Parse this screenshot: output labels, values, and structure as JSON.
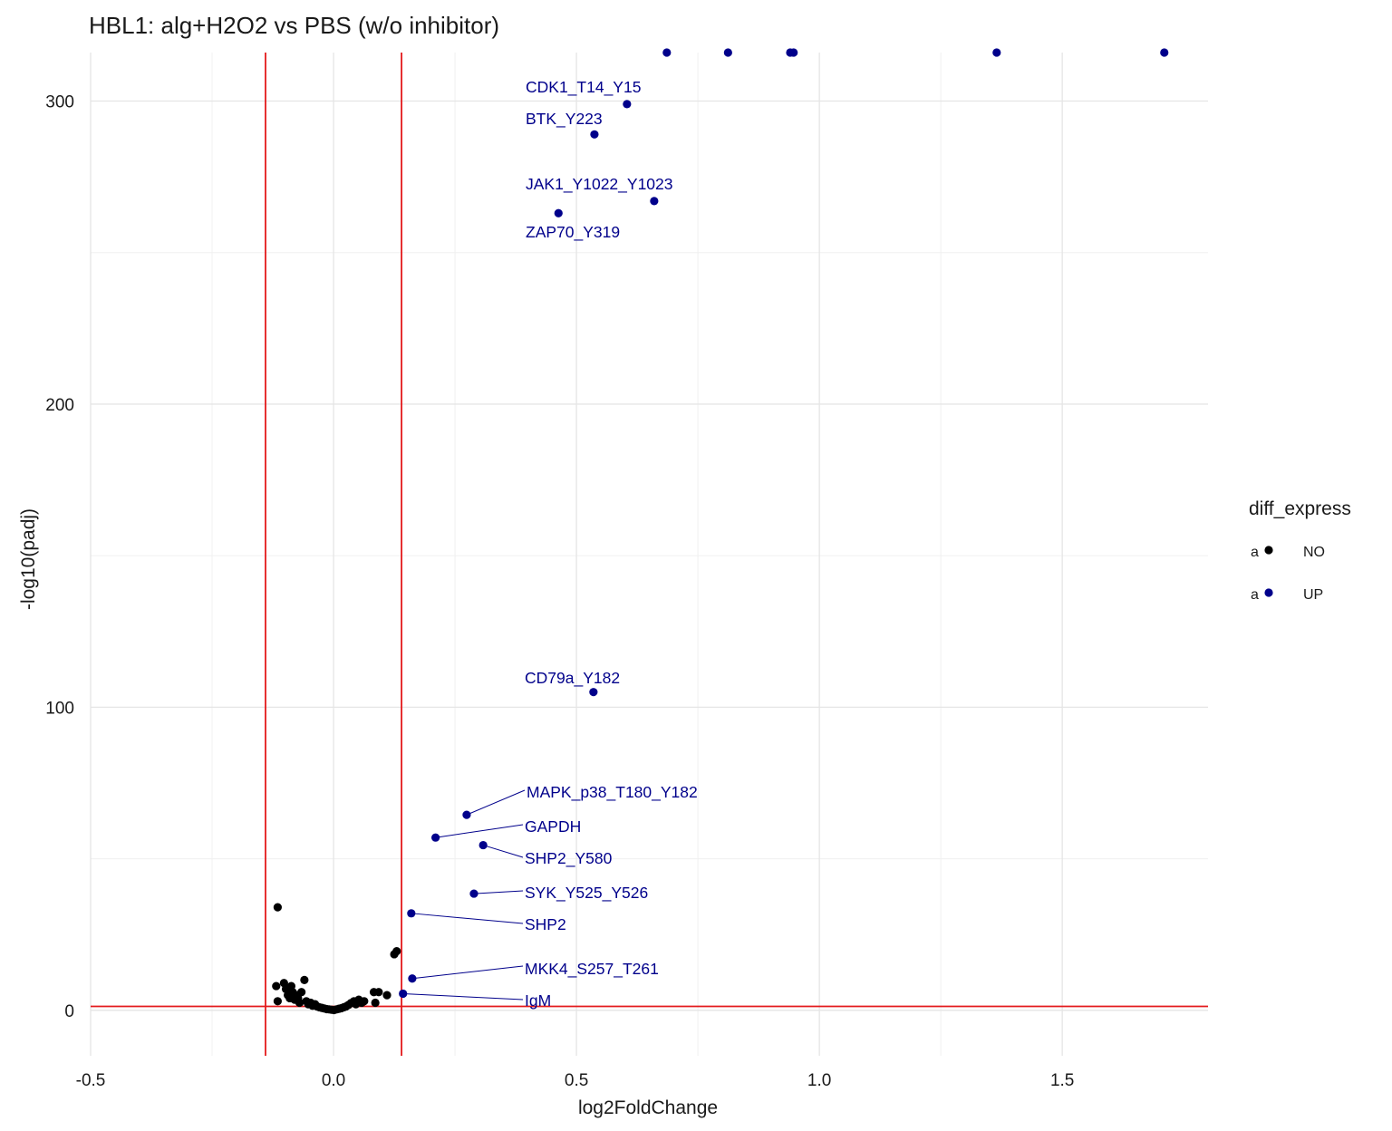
{
  "chart_data": {
    "type": "scatter",
    "title": "HBL1: alg+H2O2 vs PBS (w/o inhibitor)",
    "xlabel": "log2FoldChange",
    "ylabel": "-log10(padj)",
    "xlim": [
      -0.5,
      1.8
    ],
    "ylim": [
      -15,
      316
    ],
    "x_ticks": [
      -0.5,
      0.0,
      0.5,
      1.0,
      1.5
    ],
    "x_tick_labels": [
      "-0.5",
      "0.0",
      "0.5",
      "1.0",
      "1.5"
    ],
    "y_ticks": [
      0,
      100,
      200,
      300
    ],
    "y_tick_labels": [
      "0",
      "100",
      "200",
      "300"
    ],
    "grid": true,
    "reference_lines": {
      "vertical": [
        -0.14,
        0.14
      ],
      "horizontal": [
        1.3
      ]
    },
    "legend": {
      "title": "diff_express",
      "placement": "right",
      "entries": [
        {
          "key": "NO",
          "label": "NO",
          "glyph": "a",
          "color": "#000000"
        },
        {
          "key": "UP",
          "label": "UP",
          "glyph": "a",
          "color": "#00008B"
        }
      ]
    },
    "colors": {
      "NO": "#000000",
      "UP": "#00008B",
      "reference": "#E31A1C"
    },
    "points": [
      {
        "x": -0.115,
        "y": 34,
        "group": "NO"
      },
      {
        "x": -0.118,
        "y": 8,
        "group": "NO"
      },
      {
        "x": -0.115,
        "y": 3,
        "group": "NO"
      },
      {
        "x": -0.102,
        "y": 9,
        "group": "NO"
      },
      {
        "x": -0.098,
        "y": 7,
        "group": "NO"
      },
      {
        "x": -0.094,
        "y": 5,
        "group": "NO"
      },
      {
        "x": -0.09,
        "y": 4,
        "group": "NO"
      },
      {
        "x": -0.087,
        "y": 8,
        "group": "NO"
      },
      {
        "x": -0.084,
        "y": 6,
        "group": "NO"
      },
      {
        "x": -0.08,
        "y": 3.5,
        "group": "NO"
      },
      {
        "x": -0.077,
        "y": 5,
        "group": "NO"
      },
      {
        "x": -0.073,
        "y": 4,
        "group": "NO"
      },
      {
        "x": -0.07,
        "y": 2.5,
        "group": "NO"
      },
      {
        "x": -0.066,
        "y": 6,
        "group": "NO"
      },
      {
        "x": -0.06,
        "y": 10,
        "group": "NO"
      },
      {
        "x": -0.056,
        "y": 3,
        "group": "NO"
      },
      {
        "x": -0.052,
        "y": 2,
        "group": "NO"
      },
      {
        "x": -0.047,
        "y": 2.5,
        "group": "NO"
      },
      {
        "x": -0.043,
        "y": 1.5,
        "group": "NO"
      },
      {
        "x": -0.038,
        "y": 2,
        "group": "NO"
      },
      {
        "x": -0.033,
        "y": 1.2,
        "group": "NO"
      },
      {
        "x": -0.029,
        "y": 1.0,
        "group": "NO"
      },
      {
        "x": -0.024,
        "y": 0.8,
        "group": "NO"
      },
      {
        "x": -0.019,
        "y": 0.6,
        "group": "NO"
      },
      {
        "x": -0.014,
        "y": 0.4,
        "group": "NO"
      },
      {
        "x": -0.009,
        "y": 0.3,
        "group": "NO"
      },
      {
        "x": -0.004,
        "y": 0.2,
        "group": "NO"
      },
      {
        "x": 0.001,
        "y": 0.1,
        "group": "NO"
      },
      {
        "x": 0.006,
        "y": 0.3,
        "group": "NO"
      },
      {
        "x": 0.011,
        "y": 0.5,
        "group": "NO"
      },
      {
        "x": 0.016,
        "y": 0.7,
        "group": "NO"
      },
      {
        "x": 0.021,
        "y": 1.0,
        "group": "NO"
      },
      {
        "x": 0.026,
        "y": 1.3,
        "group": "NO"
      },
      {
        "x": 0.031,
        "y": 1.8,
        "group": "NO"
      },
      {
        "x": 0.036,
        "y": 2.4,
        "group": "NO"
      },
      {
        "x": 0.042,
        "y": 3.0,
        "group": "NO"
      },
      {
        "x": 0.046,
        "y": 2.0,
        "group": "NO"
      },
      {
        "x": 0.052,
        "y": 3.5,
        "group": "NO"
      },
      {
        "x": 0.058,
        "y": 2.5,
        "group": "NO"
      },
      {
        "x": 0.063,
        "y": 3.0,
        "group": "NO"
      },
      {
        "x": 0.083,
        "y": 6.0,
        "group": "NO"
      },
      {
        "x": 0.086,
        "y": 2.5,
        "group": "NO"
      },
      {
        "x": 0.093,
        "y": 6.0,
        "group": "NO"
      },
      {
        "x": 0.11,
        "y": 5.0,
        "group": "NO"
      },
      {
        "x": 0.125,
        "y": 18.5,
        "group": "NO"
      },
      {
        "x": 0.13,
        "y": 19.5,
        "group": "NO"
      },
      {
        "x": 0.143,
        "y": 5.5,
        "group": "UP",
        "label": "IgM"
      },
      {
        "x": 0.162,
        "y": 10.5,
        "group": "UP",
        "label": "MKK4_S257_T261"
      },
      {
        "x": 0.16,
        "y": 32,
        "group": "UP",
        "label": "SHP2"
      },
      {
        "x": 0.21,
        "y": 57,
        "group": "UP",
        "label": "GAPDH"
      },
      {
        "x": 0.274,
        "y": 64.5,
        "group": "UP",
        "label": "MAPK_p38_T180_Y182"
      },
      {
        "x": 0.289,
        "y": 38.5,
        "group": "UP",
        "label": "SYK_Y525_Y526"
      },
      {
        "x": 0.308,
        "y": 54.5,
        "group": "UP",
        "label": "SHP2_Y580"
      },
      {
        "x": 0.535,
        "y": 105,
        "group": "UP",
        "label": "CD79a_Y182"
      },
      {
        "x": 0.463,
        "y": 263,
        "group": "UP",
        "label": "ZAP70_Y319"
      },
      {
        "x": 0.66,
        "y": 267,
        "group": "UP",
        "label": "JAK1_Y1022_Y1023"
      },
      {
        "x": 0.537,
        "y": 289,
        "group": "UP",
        "label": "BTK_Y223"
      },
      {
        "x": 0.604,
        "y": 299,
        "group": "UP",
        "label": "CDK1_T14_Y15"
      },
      {
        "x": 0.686,
        "y": 316,
        "group": "UP"
      },
      {
        "x": 0.812,
        "y": 316,
        "group": "UP"
      },
      {
        "x": 0.94,
        "y": 316,
        "group": "UP"
      },
      {
        "x": 0.947,
        "y": 316,
        "group": "UP"
      },
      {
        "x": 1.365,
        "y": 316,
        "group": "UP"
      },
      {
        "x": 1.71,
        "y": 316,
        "group": "UP"
      }
    ]
  }
}
